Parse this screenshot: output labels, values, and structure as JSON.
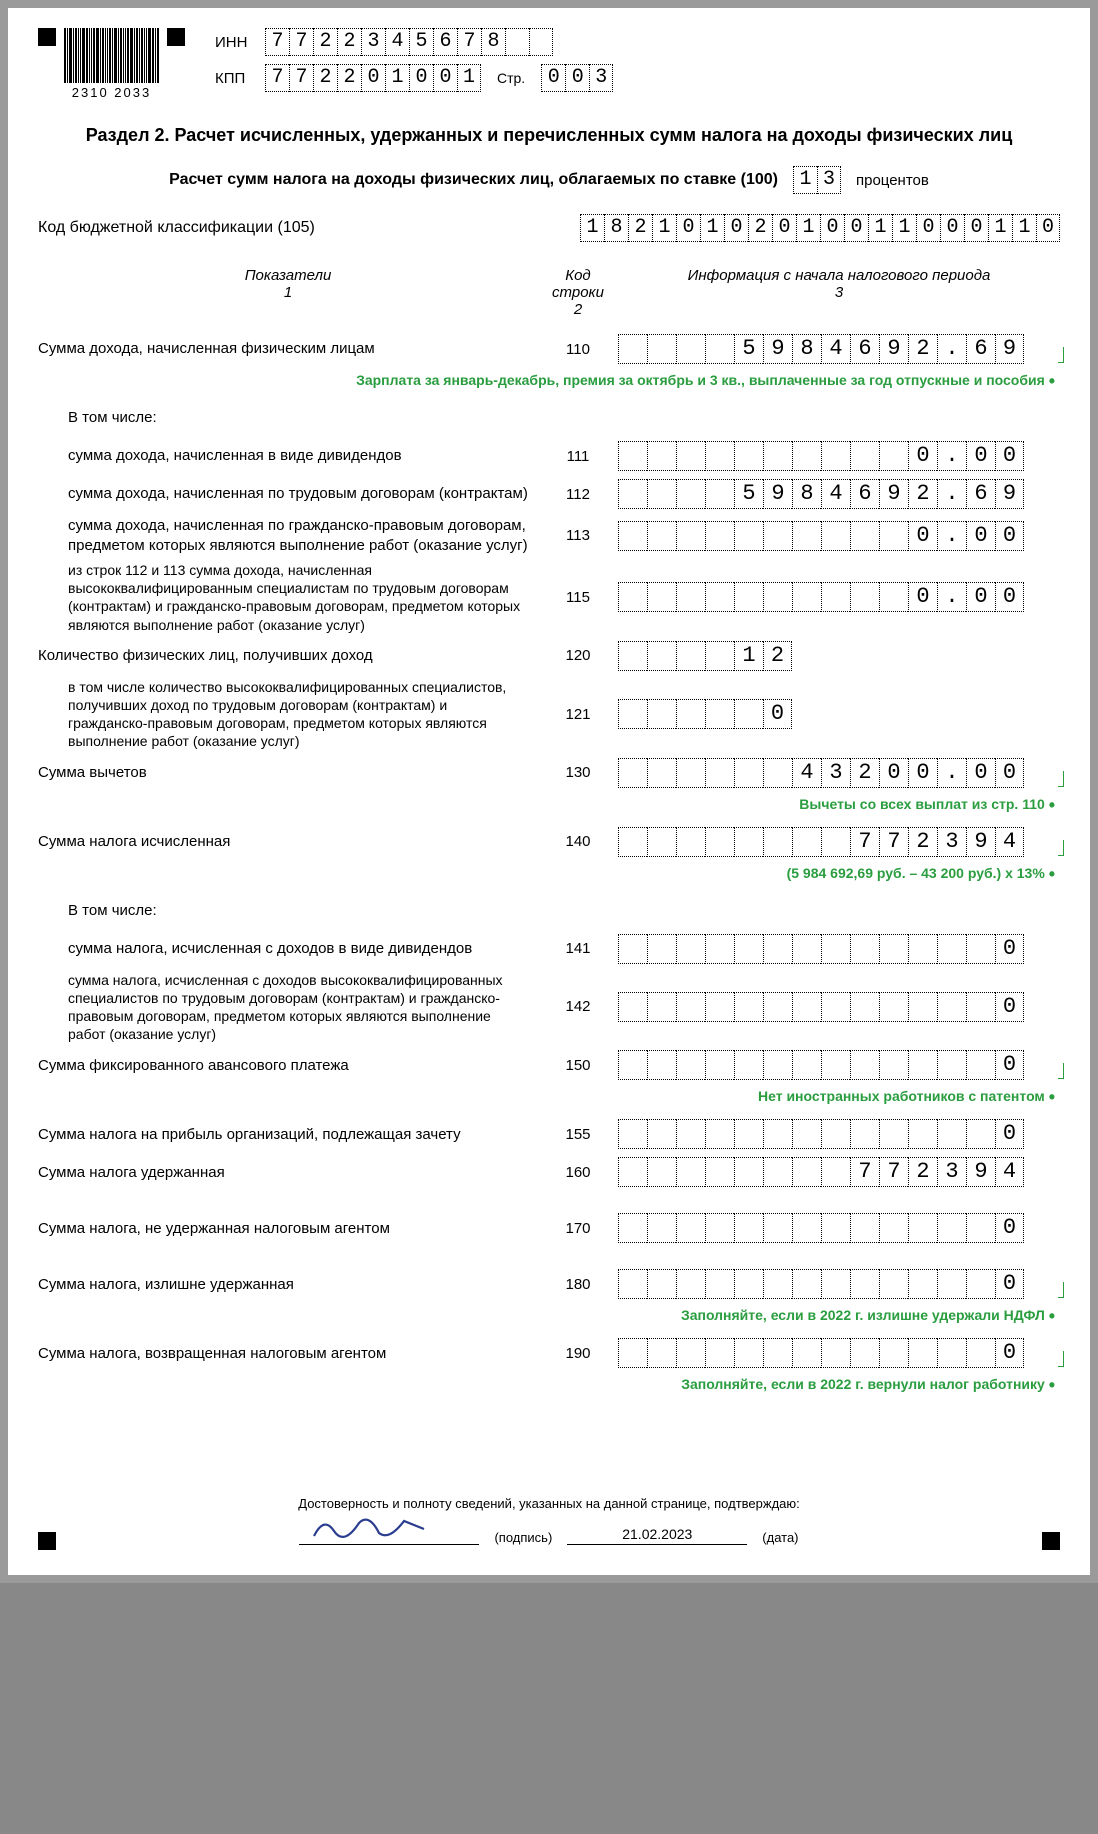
{
  "barcode_number": "2310  2033",
  "inn_label": "ИНН",
  "inn": [
    "7",
    "7",
    "2",
    "2",
    "3",
    "4",
    "5",
    "6",
    "7",
    "8",
    "",
    ""
  ],
  "kpp_label": "КПП",
  "kpp": [
    "7",
    "7",
    "2",
    "2",
    "0",
    "1",
    "0",
    "0",
    "1"
  ],
  "page_label": "Стр.",
  "page": [
    "0",
    "0",
    "3"
  ],
  "section_title": "Раздел 2. Расчет исчисленных, удержанных и перечисленных сумм налога на доходы физических лиц",
  "rate_text": "Расчет сумм налога на доходы физических лиц, облагаемых по ставке (100)",
  "rate": [
    "1",
    "3"
  ],
  "percent_label": "процентов",
  "kbk_label": "Код бюджетной классификации (105)",
  "kbk": [
    "1",
    "8",
    "2",
    "1",
    "0",
    "1",
    "0",
    "2",
    "0",
    "1",
    "0",
    "0",
    "1",
    "1",
    "0",
    "0",
    "0",
    "1",
    "1",
    "0"
  ],
  "hdr1": "Показатели",
  "hdr1n": "1",
  "hdr2": "Код строки",
  "hdr2n": "2",
  "hdr3": "Информация с начала налогового периода",
  "hdr3n": "3",
  "rows": [
    {
      "label": "Сумма дохода, начисленная физическим лицам",
      "code": "110",
      "cells": [
        "",
        "",
        "",
        "",
        "5",
        "9",
        "8",
        "4",
        "6",
        "9",
        "2",
        ".",
        "6",
        "9"
      ],
      "note": "Зарплата за январь-декабрь, премия за октябрь и 3 кв., выплаченные за год отпускные и пособия",
      "hook": true
    },
    {
      "label": "В том числе:",
      "code": "",
      "cells": null,
      "indent": true
    },
    {
      "label": "сумма дохода, начисленная в виде дивидендов",
      "code": "111",
      "cells": [
        "",
        "",
        "",
        "",
        "",
        "",
        "",
        "",
        "",
        "",
        "0",
        ".",
        "0",
        "0"
      ],
      "indent": true
    },
    {
      "label": "сумма дохода, начисленная по трудовым договорам (контрактам)",
      "code": "112",
      "cells": [
        "",
        "",
        "",
        "",
        "5",
        "9",
        "8",
        "4",
        "6",
        "9",
        "2",
        ".",
        "6",
        "9"
      ],
      "indent": true
    },
    {
      "label": "сумма дохода, начисленная по гражданско-правовым договорам, предметом которых являются выполнение работ (оказание услуг)",
      "code": "113",
      "cells": [
        "",
        "",
        "",
        "",
        "",
        "",
        "",
        "",
        "",
        "",
        "0",
        ".",
        "0",
        "0"
      ],
      "indent": true
    },
    {
      "label": "из строк 112 и 113 сумма дохода, начисленная высококвалифицированным специалистам по трудовым договорам (контрактам) и гражданско-правовым договорам, предметом которых являются выполнение работ (оказание услуг)",
      "code": "115",
      "cells": [
        "",
        "",
        "",
        "",
        "",
        "",
        "",
        "",
        "",
        "",
        "0",
        ".",
        "0",
        "0"
      ],
      "indent": true,
      "small": true
    },
    {
      "label": "Количество физических лиц, получивших доход",
      "code": "120",
      "cells": [
        "",
        "",
        "",
        "",
        "1",
        "2"
      ],
      "short": true
    },
    {
      "label": "в том числе количество высококвалифицированных специалистов, получивших доход по трудовым договорам (контрактам) и гражданско-правовым договорам, предметом которых являются выполнение работ (оказание услуг)",
      "code": "121",
      "cells": [
        "",
        "",
        "",
        "",
        "",
        "0"
      ],
      "indent": true,
      "short": true,
      "small": true
    },
    {
      "label": "Сумма вычетов",
      "code": "130",
      "cells": [
        "",
        "",
        "",
        "",
        "",
        "",
        "4",
        "3",
        "2",
        "0",
        "0",
        ".",
        "0",
        "0"
      ],
      "note": "Вычеты со всех выплат из стр. 110",
      "hook": true
    },
    {
      "label": "Сумма налога исчисленная",
      "code": "140",
      "cells": [
        "",
        "",
        "",
        "",
        "",
        "",
        "",
        "",
        "7",
        "7",
        "2",
        "3",
        "9",
        "4"
      ],
      "note": "(5 984 692,69 руб. – 43 200 руб.) х 13%",
      "hook": true
    },
    {
      "label": "В том числе:",
      "code": "",
      "cells": null,
      "indent": true
    },
    {
      "label": "сумма налога, исчисленная с доходов в виде дивидендов",
      "code": "141",
      "cells": [
        "",
        "",
        "",
        "",
        "",
        "",
        "",
        "",
        "",
        "",
        "",
        "",
        "",
        "0"
      ],
      "indent": true
    },
    {
      "label": "сумма налога, исчисленная с доходов высококвалифицированных специалистов по трудовым договорам (контрактам) и гражданско-правовым договорам, предметом которых являются выполнение работ (оказание услуг)",
      "code": "142",
      "cells": [
        "",
        "",
        "",
        "",
        "",
        "",
        "",
        "",
        "",
        "",
        "",
        "",
        "",
        "0"
      ],
      "indent": true,
      "small": true
    },
    {
      "label": "Сумма фиксированного авансового платежа",
      "code": "150",
      "cells": [
        "",
        "",
        "",
        "",
        "",
        "",
        "",
        "",
        "",
        "",
        "",
        "",
        "",
        "0"
      ],
      "note": "Нет иностранных работников с патентом",
      "hook": true
    },
    {
      "label": "Сумма налога на прибыль организаций, подлежащая зачету",
      "code": "155",
      "cells": [
        "",
        "",
        "",
        "",
        "",
        "",
        "",
        "",
        "",
        "",
        "",
        "",
        "",
        "0"
      ]
    },
    {
      "label": "Сумма налога удержанная",
      "code": "160",
      "cells": [
        "",
        "",
        "",
        "",
        "",
        "",
        "",
        "",
        "7",
        "7",
        "2",
        "3",
        "9",
        "4"
      ]
    },
    {
      "label": "Сумма налога, не удержанная налоговым агентом",
      "code": "170",
      "cells": [
        "",
        "",
        "",
        "",
        "",
        "",
        "",
        "",
        "",
        "",
        "",
        "",
        "",
        "0"
      ],
      "spacer": true
    },
    {
      "label": "Сумма налога, излишне удержанная",
      "code": "180",
      "cells": [
        "",
        "",
        "",
        "",
        "",
        "",
        "",
        "",
        "",
        "",
        "",
        "",
        "",
        "0"
      ],
      "note": "Заполняйте, если в 2022 г. излишне удержали НДФЛ",
      "hook": true,
      "spacer": true
    },
    {
      "label": "Сумма налога, возвращенная налоговым агентом",
      "code": "190",
      "cells": [
        "",
        "",
        "",
        "",
        "",
        "",
        "",
        "",
        "",
        "",
        "",
        "",
        "",
        "0"
      ],
      "note": "Заполняйте, если в 2022 г. вернули налог работнику",
      "hook": true
    }
  ],
  "footer_text": "Достоверность и полноту сведений, указанных на данной странице, подтверждаю:",
  "sig_label": "(подпись)",
  "date_value": "21.02.2023",
  "date_label": "(дата)",
  "colors": {
    "green": "#2a9d3f",
    "sig": "#2a3d8f"
  }
}
